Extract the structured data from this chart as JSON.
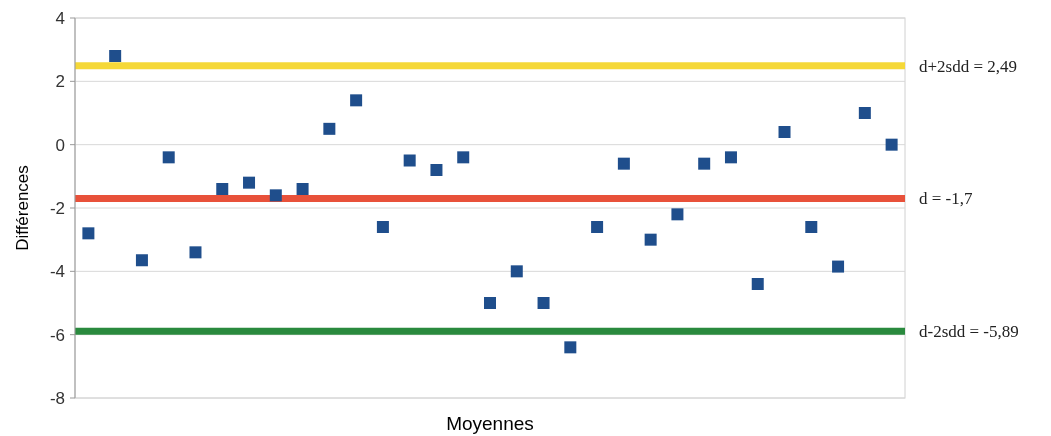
{
  "chart_data": {
    "type": "scatter",
    "xlabel": "Moyennes",
    "ylabel": "Différences",
    "categories": [
      null,
      null,
      null,
      null,
      null,
      null,
      null,
      null,
      null,
      null,
      null,
      null,
      null,
      null,
      null,
      null,
      null,
      null,
      null,
      null,
      null,
      null,
      null,
      null,
      null,
      null,
      null,
      null,
      null,
      null,
      null
    ],
    "series": [
      {
        "color": "#1f4e8c",
        "values": [
          -2.8,
          2.8,
          -3.65,
          -0.4,
          -3.4,
          -1.4,
          -1.2,
          -1.6,
          -1.4,
          0.5,
          1.4,
          -2.6,
          -0.5,
          -0.8,
          -0.4,
          -5,
          -4,
          -5,
          -6.4,
          -2.6,
          -0.6,
          -3,
          -2.2,
          -0.6,
          -0.4,
          -4.4,
          0.4,
          -2.6,
          -3.85,
          1,
          0
        ]
      }
    ],
    "ylim": [
      -8,
      4
    ],
    "yticks": [
      -8,
      -6,
      -4,
      -2,
      0,
      2,
      4
    ],
    "grid": "y",
    "tick_labels": "y",
    "marker": "square",
    "ref_lines": [
      {
        "axis": "y",
        "value": 2.49,
        "label": "d+2sdd = 2,49",
        "color": "#f5d838"
      },
      {
        "axis": "y",
        "value": -1.7,
        "label": "d = -1,7",
        "color": "#e8513a"
      },
      {
        "axis": "y",
        "value": -5.89,
        "label": "d-2sdd = -5,89",
        "color": "#2a8a3e"
      }
    ]
  }
}
